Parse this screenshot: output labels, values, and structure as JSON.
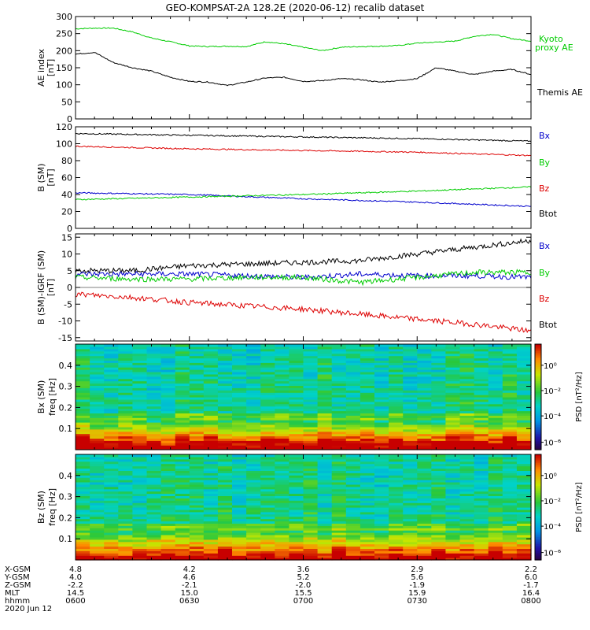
{
  "title": "GEO-KOMPSAT-2A 128.2E (2020-06-12) recalib dataset",
  "colors": {
    "black": "#000000",
    "red": "#dd0000",
    "green": "#00cc00",
    "blue": "#0000cc"
  },
  "chart_data": [
    {
      "type": "line",
      "ylabel": "AE index [nT]",
      "ylim": [
        0,
        300
      ],
      "yticks": [
        0,
        50,
        100,
        150,
        200,
        250,
        300
      ],
      "xlim": [
        0,
        120
      ],
      "series": [
        {
          "name": "Kyoto proxy AE",
          "color": "#00cc00",
          "x": [
            0,
            5,
            10,
            15,
            20,
            25,
            30,
            35,
            40,
            45,
            50,
            55,
            60,
            65,
            70,
            75,
            80,
            85,
            90,
            95,
            100,
            105,
            110,
            115,
            120
          ],
          "values": [
            264,
            266,
            266,
            255,
            237,
            226,
            214,
            212,
            213,
            212,
            226,
            220,
            210,
            200,
            210,
            212,
            213,
            215,
            222,
            225,
            228,
            242,
            248,
            235,
            228
          ]
        },
        {
          "name": "Themis AE",
          "color": "#000000",
          "x": [
            0,
            5,
            10,
            15,
            20,
            25,
            30,
            35,
            40,
            45,
            50,
            55,
            60,
            65,
            70,
            75,
            80,
            85,
            90,
            95,
            100,
            105,
            110,
            115,
            120
          ],
          "values": [
            190,
            195,
            165,
            150,
            140,
            122,
            110,
            108,
            98,
            108,
            120,
            122,
            110,
            112,
            118,
            115,
            108,
            112,
            118,
            150,
            140,
            130,
            140,
            145,
            130
          ]
        }
      ]
    },
    {
      "type": "line",
      "ylabel": "B (SM) [nT]",
      "ylim": [
        0,
        120
      ],
      "yticks": [
        0,
        20,
        40,
        60,
        80,
        100,
        120
      ],
      "xlim": [
        0,
        120
      ],
      "series": [
        {
          "name": "Bx",
          "color": "#000000",
          "x": [
            0,
            30,
            60,
            90,
            120
          ],
          "values": [
            112,
            110,
            108,
            106,
            103
          ]
        },
        {
          "name": "By",
          "color": "#dd0000",
          "x": [
            0,
            30,
            60,
            90,
            120
          ],
          "values": [
            97,
            94,
            92,
            90,
            86
          ]
        },
        {
          "name": "Bz",
          "color": "#0000cc",
          "x": [
            0,
            30,
            60,
            90,
            120
          ],
          "values": [
            42,
            40,
            35,
            31,
            26
          ]
        },
        {
          "name": "Btot",
          "color": "#00cc00",
          "x": [
            0,
            30,
            60,
            90,
            120
          ],
          "values": [
            34,
            37,
            40,
            44,
            49
          ]
        }
      ]
    },
    {
      "type": "line",
      "ylabel": "B (SM)-IGRF (SM) [nT]",
      "ylim": [
        -16,
        16
      ],
      "yticks": [
        -15,
        -10,
        -5,
        0,
        5,
        10,
        15
      ],
      "xlim": [
        0,
        120
      ],
      "series": [
        {
          "name": "Bx",
          "color": "#000000",
          "x": [
            0,
            15,
            30,
            45,
            60,
            75,
            90,
            105,
            120
          ],
          "values": [
            5,
            5,
            6.5,
            7,
            7.5,
            8,
            10,
            12,
            14
          ]
        },
        {
          "name": "By",
          "color": "#0000cc",
          "x": [
            0,
            15,
            30,
            45,
            60,
            75,
            90,
            105,
            120
          ],
          "values": [
            4,
            4,
            4,
            3.5,
            3,
            4,
            3.5,
            3.5,
            3
          ]
        },
        {
          "name": "Bz",
          "color": "#00cc00",
          "x": [
            0,
            15,
            30,
            45,
            60,
            75,
            90,
            105,
            120
          ],
          "values": [
            3,
            2.5,
            2.5,
            3,
            3,
            1.5,
            3,
            4.5,
            4.5
          ]
        },
        {
          "name": "Btot",
          "color": "#dd0000",
          "x": [
            0,
            15,
            30,
            45,
            60,
            75,
            90,
            105,
            120
          ],
          "values": [
            -2,
            -3,
            -4.5,
            -5.5,
            -6.5,
            -8,
            -9.5,
            -11,
            -13
          ]
        }
      ]
    },
    {
      "type": "heatmap",
      "ylabel": "Bx (SM) freq [Hz]",
      "yticks": [
        0.1,
        0.2,
        0.3,
        0.4
      ],
      "ylim": [
        0,
        0.5
      ],
      "colorbar_label": "PSD [nT²/Hz]",
      "colorbar_ticks": [
        "10⁰",
        "10⁻²",
        "10⁻⁴",
        "10⁻⁶"
      ]
    },
    {
      "type": "heatmap",
      "ylabel": "Bz (SM) freq [Hz]",
      "yticks": [
        0.1,
        0.2,
        0.3,
        0.4
      ],
      "ylim": [
        0,
        0.5
      ],
      "colorbar_label": "PSD [nT²/Hz]",
      "colorbar_ticks": [
        "10⁰",
        "10⁻²",
        "10⁻⁴",
        "10⁻⁶"
      ]
    }
  ],
  "panel_labels": {
    "ae": [
      "Kyoto",
      "proxy AE",
      "Themis AE"
    ],
    "b": [
      "Bx",
      "By",
      "Bz",
      "Btot"
    ],
    "db": [
      "Bx",
      "By",
      "Bz",
      "Btot"
    ]
  },
  "axis_table": {
    "rows": [
      "X-GSM",
      "Y-GSM",
      "Z-GSM",
      "MLT",
      "hhmm"
    ],
    "date": "2020 Jun 12",
    "columns": [
      {
        "values": [
          "4.8",
          "4.0",
          "-2.2",
          "14.5",
          "0600"
        ]
      },
      {
        "values": [
          "4.2",
          "4.6",
          "-2.1",
          "15.0",
          "0630"
        ]
      },
      {
        "values": [
          "3.6",
          "5.2",
          "-2.0",
          "15.5",
          "0700"
        ]
      },
      {
        "values": [
          "2.9",
          "5.6",
          "-1.9",
          "15.9",
          "0730"
        ]
      },
      {
        "values": [
          "2.2",
          "6.0",
          "-1.7",
          "16.4",
          "0800"
        ]
      }
    ]
  }
}
